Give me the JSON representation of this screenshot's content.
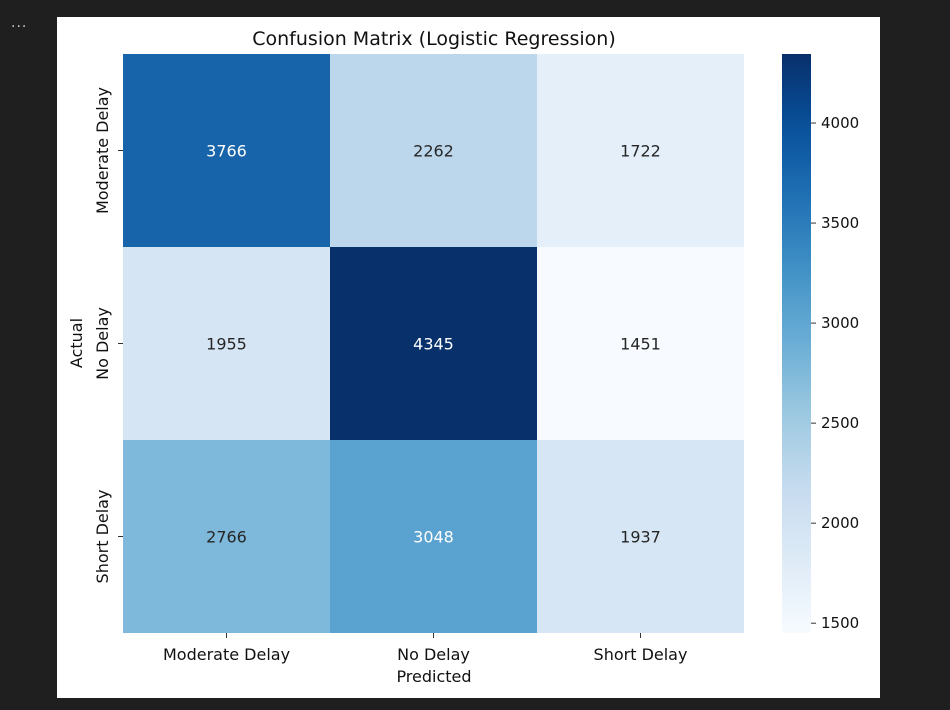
{
  "toolbar": {
    "ellipsis": "..."
  },
  "chart_data": {
    "type": "heatmap",
    "title": "Confusion Matrix (Logistic Regression)",
    "xlabel": "Predicted",
    "ylabel": "Actual",
    "x_categories": [
      "Moderate Delay",
      "No Delay",
      "Short Delay"
    ],
    "y_categories": [
      "Moderate Delay",
      "No Delay",
      "Short Delay"
    ],
    "values": [
      [
        3766,
        2262,
        1722
      ],
      [
        1955,
        4345,
        1451
      ],
      [
        2766,
        3048,
        1937
      ]
    ],
    "colormap": "Blues",
    "color_range": [
      1451,
      4345
    ],
    "colorbar_ticks": [
      1500,
      2000,
      2500,
      3000,
      3500,
      4000
    ],
    "colorbar_tick_labels": [
      "1500",
      "2000",
      "2500",
      "3000",
      "3500",
      "4000"
    ],
    "annotate": true,
    "grid": false
  }
}
